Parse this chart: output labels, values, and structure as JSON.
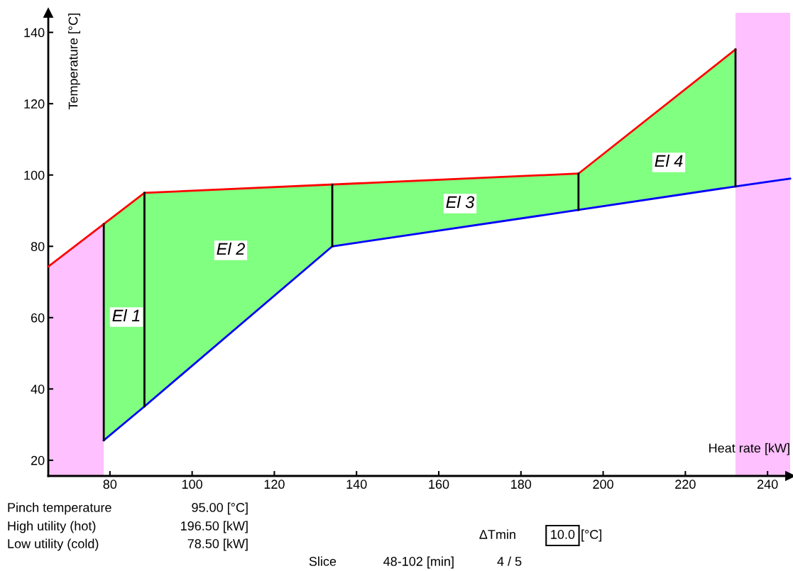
{
  "chart_data": {
    "type": "line",
    "xlabel": "Heat rate [kW]",
    "ylabel": "Temperature [°C]",
    "xlim": [
      65,
      245.5
    ],
    "ylim": [
      15.6,
      145.5
    ],
    "xticks": [
      80,
      100,
      120,
      140,
      160,
      180,
      200,
      220,
      240
    ],
    "yticks": [
      20,
      40,
      60,
      80,
      100,
      120,
      140
    ],
    "grid": false,
    "marker": "none",
    "line_style": "solid",
    "bands": [
      {
        "axis": "x",
        "from": 232.2,
        "to": 245.5,
        "color": "#ffc0ff"
      }
    ],
    "series": [
      {
        "type": "area",
        "color": "#ffc0ff",
        "x": [
          65,
          78.5
        ],
        "values": [
          74.3,
          86.2
        ]
      },
      {
        "color": "#ff0000",
        "x": [
          65,
          88.4,
          194,
          232.2
        ],
        "values": [
          74.3,
          95,
          100.4,
          135.2
        ]
      },
      {
        "color": "#0000ff",
        "x": [
          78.5,
          88.4,
          134.1,
          194,
          232.2,
          245.5
        ],
        "values": [
          25.6,
          35.1,
          80,
          90.2,
          96.8,
          99
        ],
        "lower": [
          25.6,
          35.1,
          80,
          90.2,
          96.8,
          null
        ],
        "upper": [
          86.2,
          95,
          97.3,
          100.4,
          135.2,
          null
        ]
      },
      {
        "color": "#000000",
        "x": [
          78.5,
          78.5
        ],
        "values": [
          25.6,
          86.2
        ]
      },
      {
        "color": "#000000",
        "x": [
          88.4,
          88.4
        ],
        "values": [
          35.1,
          95
        ]
      },
      {
        "color": "#000000",
        "x": [
          134.1,
          134.1
        ],
        "values": [
          80,
          97.3
        ]
      },
      {
        "color": "#000000",
        "x": [
          194,
          194
        ],
        "values": [
          90.2,
          100.4
        ]
      },
      {
        "color": "#000000",
        "x": [
          232.2,
          232.2
        ],
        "values": [
          96.8,
          135.2
        ]
      }
    ],
    "annotations": [
      "El 1",
      "El 2",
      "El 3",
      "El 4",
      "Pinch temperature",
      "95.00 [°C]",
      "High utility (hot)",
      "196.50 [kW]",
      "Low utility (cold)",
      "78.50 [kW]",
      "ΔTmin",
      "10.0",
      "[°C]",
      "Slice",
      "48-102 [min]",
      "4 / 5"
    ]
  }
}
